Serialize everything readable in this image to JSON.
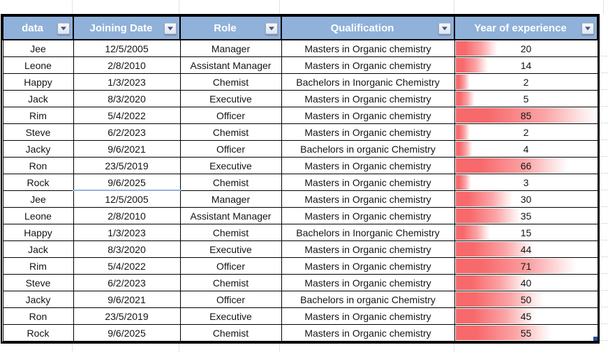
{
  "sheet": {
    "columns": [
      {
        "label": "data"
      },
      {
        "label": "Joining Date"
      },
      {
        "label": "Role"
      },
      {
        "label": "Qualification"
      },
      {
        "label": "Year of experience"
      }
    ],
    "filter_icon": "chevron-down",
    "rows": [
      {
        "name": "Jee",
        "joining_date": "12/5/2005",
        "role": "Manager",
        "qualification": "Masters in Organic chemistry",
        "years": 20
      },
      {
        "name": "Leone",
        "joining_date": "2/8/2010",
        "role": "Assistant Manager",
        "qualification": "Masters in Organic chemistry",
        "years": 14
      },
      {
        "name": "Happy",
        "joining_date": "1/3/2023",
        "role": "Chemist",
        "qualification": "Bachelors in Inorganic Chemistry",
        "years": 2
      },
      {
        "name": "Jack",
        "joining_date": "8/3/2020",
        "role": "Executive",
        "qualification": "Masters in Organic chemistry",
        "years": 5
      },
      {
        "name": "Rim",
        "joining_date": "5/4/2022",
        "role": "Officer",
        "qualification": "Masters in Organic chemistry",
        "years": 85
      },
      {
        "name": "Steve",
        "joining_date": "6/2/2023",
        "role": "Chemist",
        "qualification": "Masters in Organic chemistry",
        "years": 2
      },
      {
        "name": "Jacky",
        "joining_date": "9/6/2021",
        "role": "Officer",
        "qualification": "Bachelors in organic Chemistry",
        "years": 4
      },
      {
        "name": "Ron",
        "joining_date": "23/5/2019",
        "role": "Executive",
        "qualification": "Masters in Organic chemistry",
        "years": 66
      },
      {
        "name": "Rock",
        "joining_date": "9/6/2025",
        "role": "Chemist",
        "qualification": "Masters in Organic chemistry",
        "years": 3
      },
      {
        "name": "Jee",
        "joining_date": "12/5/2005",
        "role": "Manager",
        "qualification": "Masters in Organic chemistry",
        "years": 30
      },
      {
        "name": "Leone",
        "joining_date": "2/8/2010",
        "role": "Assistant Manager",
        "qualification": "Masters in Organic chemistry",
        "years": 35
      },
      {
        "name": "Happy",
        "joining_date": "1/3/2023",
        "role": "Chemist",
        "qualification": "Bachelors in Inorganic Chemistry",
        "years": 15
      },
      {
        "name": "Jack",
        "joining_date": "8/3/2020",
        "role": "Executive",
        "qualification": "Masters in Organic chemistry",
        "years": 44
      },
      {
        "name": "Rim",
        "joining_date": "5/4/2022",
        "role": "Officer",
        "qualification": "Masters in Organic chemistry",
        "years": 71
      },
      {
        "name": "Steve",
        "joining_date": "6/2/2023",
        "role": "Chemist",
        "qualification": "Masters in Organic chemistry",
        "years": 40
      },
      {
        "name": "Jacky",
        "joining_date": "9/6/2021",
        "role": "Officer",
        "qualification": "Bachelors in organic Chemistry",
        "years": 50
      },
      {
        "name": "Ron",
        "joining_date": "23/5/2019",
        "role": "Executive",
        "qualification": "Masters in Organic chemistry",
        "years": 45
      },
      {
        "name": "Rock",
        "joining_date": "9/6/2025",
        "role": "Chemist",
        "qualification": "Masters in Organic chemistry",
        "years": 55
      }
    ],
    "databar": {
      "column": "Year of experience",
      "style": "gradient",
      "min_length_pct": 10
    }
  },
  "colors": {
    "header_bg": "#8fb1da",
    "header_text": "#ffffff",
    "table_border": "#000000",
    "databar_red": "#f8696b",
    "gridline": "#dbe3f0",
    "accent_border_blue": "#95b3d7",
    "resize_handle_blue": "#2b4a9b"
  }
}
